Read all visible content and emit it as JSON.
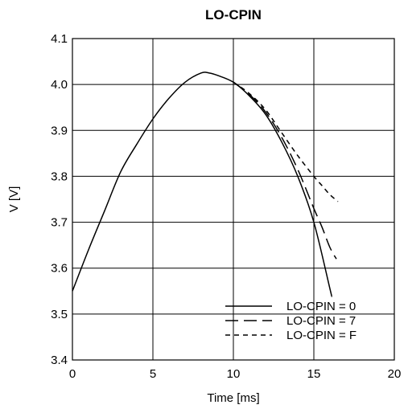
{
  "chart_data": {
    "type": "line",
    "title": "LO-CPIN",
    "xlabel": "Time [ms]",
    "ylabel": "V [V]",
    "xlim": [
      0,
      20
    ],
    "ylim": [
      3.4,
      4.1
    ],
    "x_ticks": [
      0,
      5,
      10,
      15,
      20
    ],
    "y_ticks": [
      3.4,
      3.5,
      3.6,
      3.7,
      3.8,
      3.9,
      4.0,
      4.1
    ],
    "x_tick_labels": [
      "0",
      "5",
      "10",
      "15",
      "20"
    ],
    "y_tick_labels": [
      "3.4",
      "3.5",
      "3.6",
      "3.7",
      "3.8",
      "3.9",
      "4.0",
      "4.1"
    ],
    "grid": true,
    "legend_position": "bottom-right",
    "series": [
      {
        "name": "LO-CPIN = 0",
        "line_style": "solid",
        "points": [
          [
            0,
            3.55
          ],
          [
            1,
            3.64
          ],
          [
            2,
            3.725
          ],
          [
            3,
            3.81
          ],
          [
            4,
            3.87
          ],
          [
            5,
            3.925
          ],
          [
            6,
            3.97
          ],
          [
            7,
            4.005
          ],
          [
            8,
            4.025
          ],
          [
            8.5,
            4.025
          ],
          [
            9,
            4.02
          ],
          [
            10,
            4.005
          ],
          [
            11,
            3.975
          ],
          [
            12,
            3.935
          ],
          [
            13,
            3.875
          ],
          [
            14,
            3.8
          ],
          [
            15,
            3.7
          ],
          [
            16,
            3.555
          ],
          [
            16.1,
            3.54
          ]
        ]
      },
      {
        "name": "LO-CPIN = 7",
        "line_style": "dashed",
        "points": [
          [
            10,
            4.005
          ],
          [
            11,
            3.978
          ],
          [
            12,
            3.94
          ],
          [
            13,
            3.885
          ],
          [
            14,
            3.815
          ],
          [
            15,
            3.73
          ],
          [
            15.5,
            3.69
          ],
          [
            16,
            3.645
          ],
          [
            16.4,
            3.62
          ]
        ]
      },
      {
        "name": "LO-CPIN = F",
        "line_style": "short-dashed",
        "points": [
          [
            10,
            4.005
          ],
          [
            11,
            3.98
          ],
          [
            12,
            3.945
          ],
          [
            13,
            3.895
          ],
          [
            14,
            3.845
          ],
          [
            15,
            3.8
          ],
          [
            15.5,
            3.78
          ],
          [
            16,
            3.76
          ],
          [
            16.5,
            3.745
          ]
        ]
      }
    ]
  }
}
